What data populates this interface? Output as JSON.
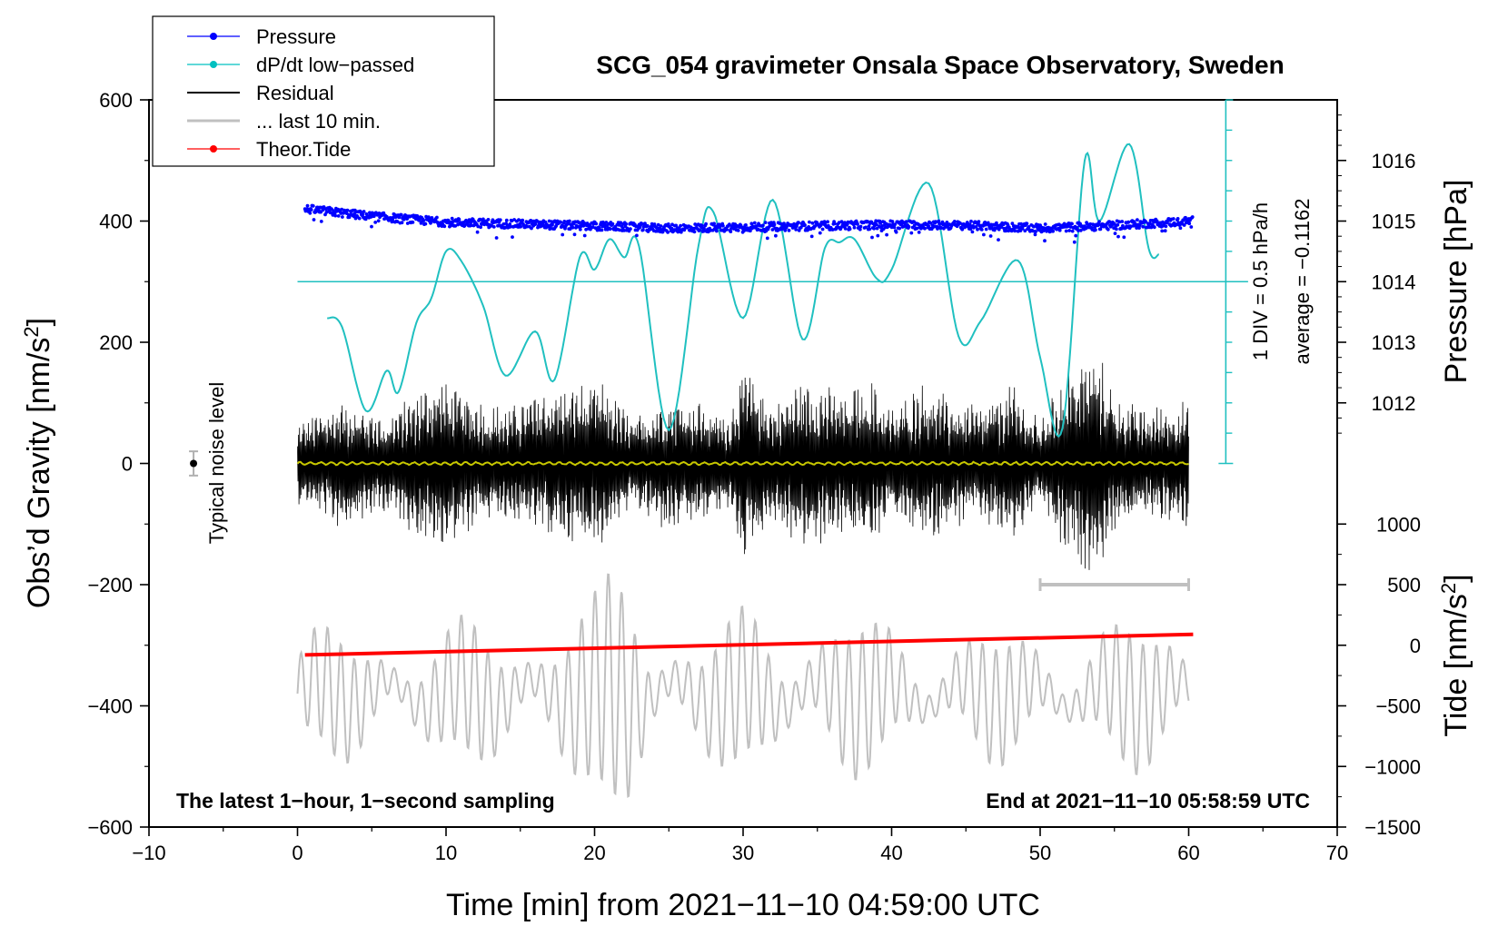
{
  "chart_data": {
    "type": "line",
    "title": "SCG_054 gravimeter Onsala Space Observatory, Sweden",
    "xlabel": "Time [min] from 2021−11−10 04:59:00 UTC",
    "ylabel_left": "Obs’d Gravity [nm/s2]",
    "ylabel_right_top": "Pressure [hPa]",
    "ylabel_right_bottom": "Tide [nm/s2]",
    "xlim": [
      -10,
      70
    ],
    "ylim": [
      -600,
      600
    ],
    "x_ticks": [
      -10,
      0,
      10,
      20,
      30,
      40,
      50,
      60,
      70
    ],
    "x_tick_labels": [
      "−10",
      "0",
      "10",
      "20",
      "30",
      "40",
      "50",
      "60",
      "70"
    ],
    "y_ticks": [
      -600,
      -400,
      -200,
      0,
      200,
      400,
      600
    ],
    "y_tick_labels": [
      "−600",
      "−400",
      "−200",
      "0",
      "200",
      "400",
      "600"
    ],
    "pressure_axis": {
      "ticks": [
        1012,
        1013,
        1014,
        1015,
        1016
      ],
      "labels": [
        "1012",
        "1013",
        "1014",
        "1015",
        "1016"
      ],
      "gravity_at_1012": 100,
      "gravity_per_hPa": 100
    },
    "tide_axis": {
      "ticks": [
        -1500,
        -1000,
        -500,
        0,
        500,
        1000
      ],
      "labels": [
        "−1500",
        "−1000",
        "−500",
        "0",
        "500",
        "1000"
      ],
      "gravity_at_0": -300,
      "gravity_per_unit": 0.2
    },
    "dpdt_scale": {
      "label1": "1 DIV = 0.5 hPa/h",
      "label2": "average = −0.1162",
      "baseline_gravity": 300,
      "bar_x": 62.5,
      "bar_y_range": [
        0,
        600
      ],
      "divisions": 12
    },
    "noise_marker": {
      "label": "Typical noise level",
      "x": -7,
      "y": 0,
      "err": 20
    },
    "last10_bar": {
      "x_range": [
        50,
        60
      ],
      "y": -200
    },
    "legend": [
      {
        "label": "Pressure",
        "color": "#0000ff",
        "marker": true
      },
      {
        "label": "dP/dt low−passed",
        "color": "#00c0c0",
        "marker": true
      },
      {
        "label": "Residual",
        "color": "#000000",
        "marker": false
      },
      {
        "label": "... last 10 min.",
        "color": "#c0c0c0",
        "marker": false
      },
      {
        "label": "Theor.Tide",
        "color": "#ff0000",
        "marker": true
      }
    ],
    "annotations": {
      "bottom_left": "The latest 1−hour, 1−second sampling",
      "bottom_right": "End at 2021−11−10 05:58:59 UTC"
    },
    "series": [
      {
        "name": "Pressure",
        "color": "#0000ff",
        "unit": "hPa",
        "x": [
          0.5,
          5,
          10,
          15,
          20,
          25,
          30,
          35,
          40,
          45,
          50,
          55,
          60.3
        ],
        "values": [
          1015.2,
          1015.08,
          1014.98,
          1014.95,
          1014.92,
          1014.88,
          1014.9,
          1014.92,
          1014.94,
          1014.93,
          1014.88,
          1014.93,
          1015.0
        ]
      },
      {
        "name": "dP/dt low-passed",
        "color": "#00c0c0",
        "unit": "nm/s2 (plot)",
        "x": [
          2,
          3,
          4.6,
          6,
          6.8,
          8,
          9,
          10,
          11,
          12.5,
          14,
          16,
          17.3,
          19,
          20,
          21,
          22,
          23,
          25,
          27,
          28,
          30,
          32,
          34,
          35.5,
          36.5,
          37.5,
          39,
          40,
          42.5,
          44.5,
          46,
          48.5,
          50,
          51.5,
          53,
          54,
          56,
          57.3,
          58
        ],
        "values": [
          240,
          225,
          87,
          153,
          118,
          232,
          272,
          350,
          335,
          260,
          145,
          218,
          138,
          340,
          320,
          370,
          340,
          358,
          55,
          360,
          415,
          240,
          435,
          205,
          355,
          365,
          370,
          305,
          320,
          462,
          210,
          235,
          335,
          175,
          58,
          500,
          400,
          527,
          355,
          345
        ]
      },
      {
        "name": "Theor.Tide",
        "color": "#ff0000",
        "unit": "nm/s2 (tide)",
        "x": [
          0.5,
          60.3
        ],
        "values": [
          -80,
          90
        ]
      }
    ]
  }
}
